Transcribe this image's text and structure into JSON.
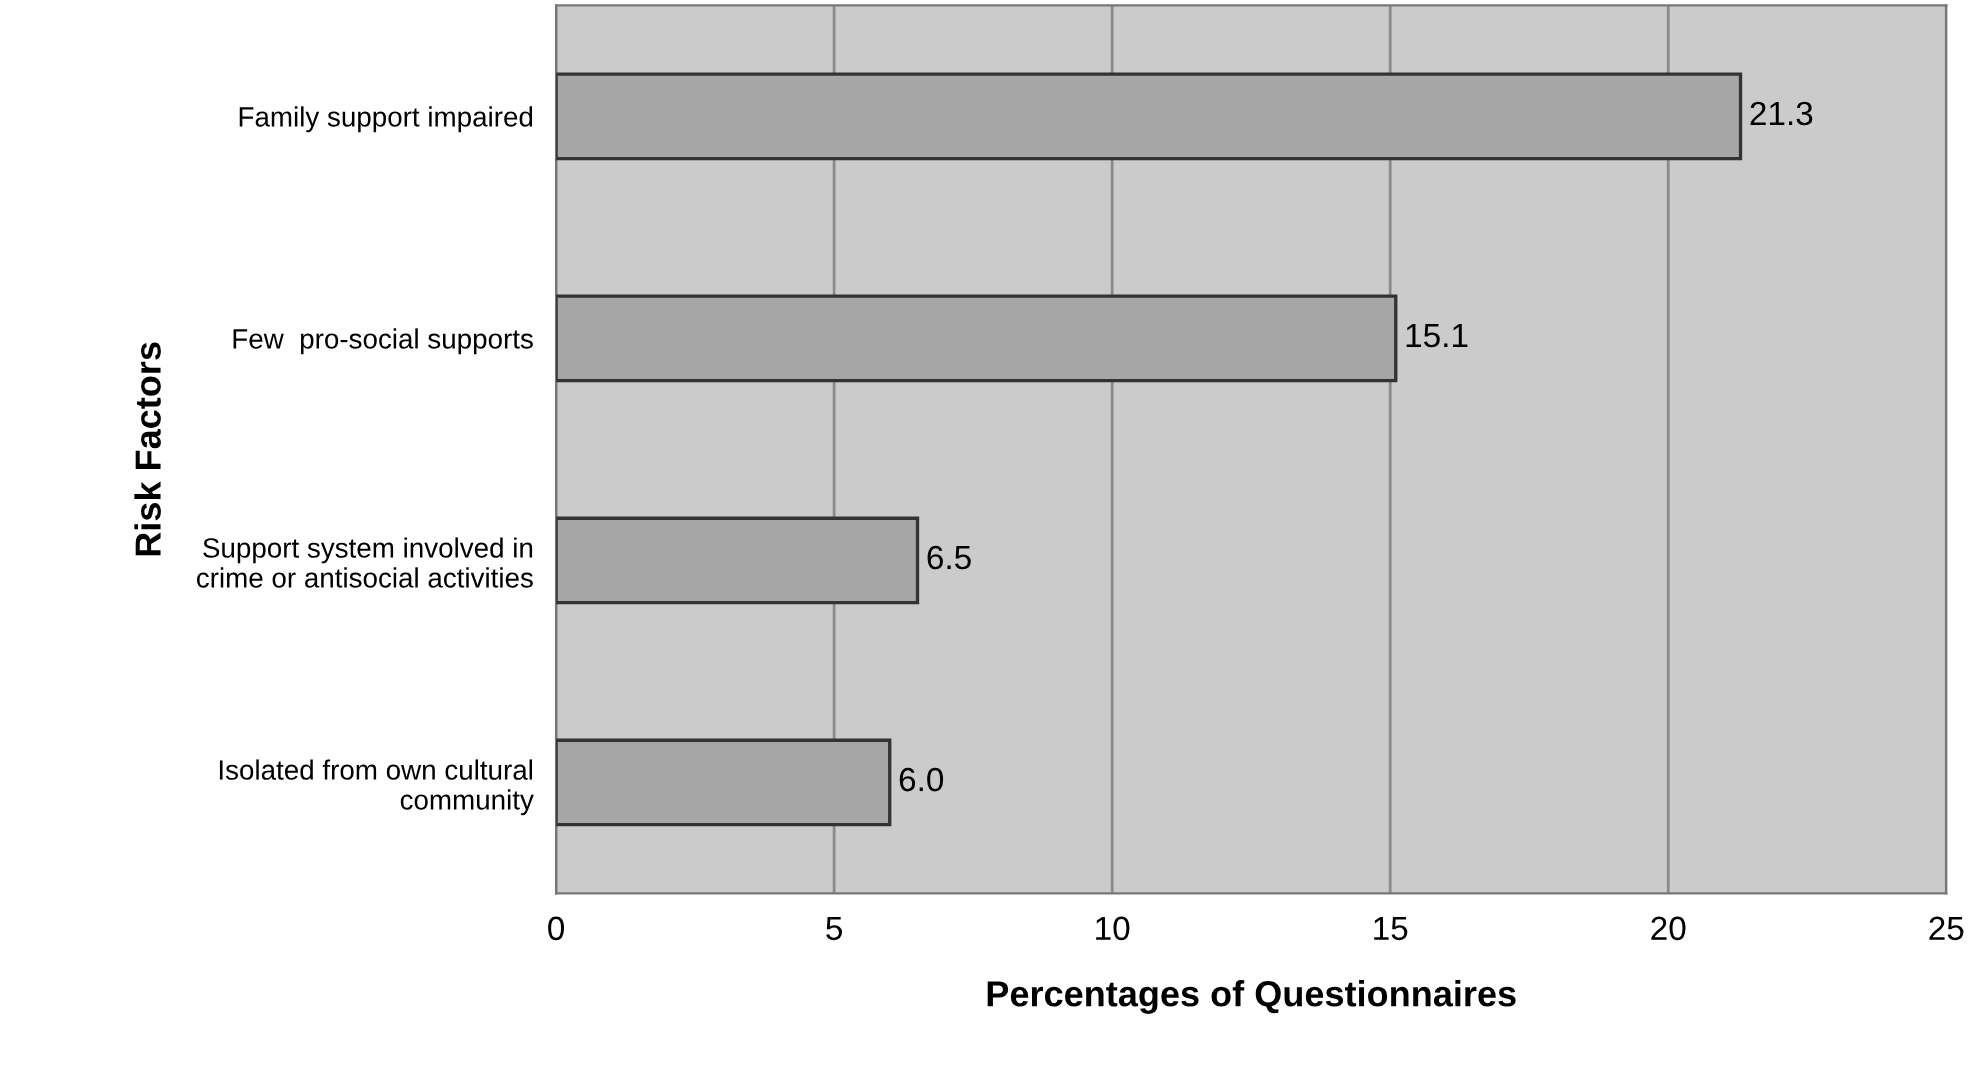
{
  "chart_data": {
    "type": "bar",
    "orientation": "horizontal",
    "categories": [
      "Family support impaired",
      "Few  pro-social supports",
      "Support system involved in\ncrime or antisocial activities",
      "Isolated from own cultural\ncommunity"
    ],
    "values": [
      21.3,
      15.1,
      6.5,
      6.0
    ],
    "value_labels": [
      "21.3",
      "15.1",
      "6.5",
      "6.0"
    ],
    "color": "#a6a6a6",
    "xlim": [
      0,
      25
    ],
    "xticks": [
      0,
      5,
      10,
      15,
      20,
      25
    ],
    "xlabel": "Percentages of Questionnaires",
    "ylabel": "Risk Factors",
    "grid": "x"
  }
}
